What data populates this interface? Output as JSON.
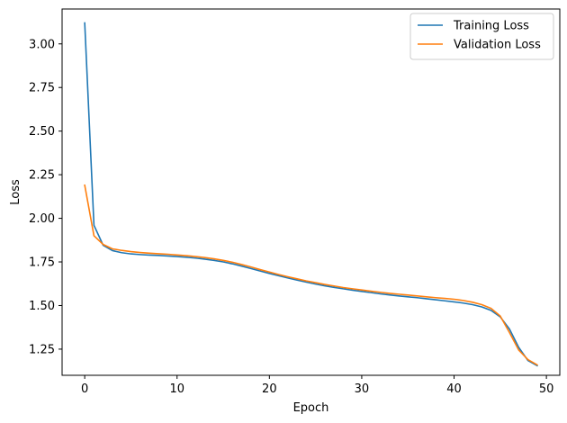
{
  "chart_data": {
    "type": "line",
    "xlabel": "Epoch",
    "ylabel": "Loss",
    "xlim": [
      -2.45,
      51.45
    ],
    "ylim": [
      1.1,
      3.2
    ],
    "xticks": [
      0,
      10,
      20,
      30,
      40,
      50
    ],
    "yticks": [
      1.25,
      1.5,
      1.75,
      2.0,
      2.25,
      2.5,
      2.75,
      3.0
    ],
    "ytick_labels": [
      "1.25",
      "1.50",
      "1.75",
      "2.00",
      "2.25",
      "2.50",
      "2.75",
      "3.00"
    ],
    "grid": false,
    "legend_position": "top-right",
    "x": [
      0,
      1,
      2,
      3,
      4,
      5,
      6,
      7,
      8,
      9,
      10,
      11,
      12,
      13,
      14,
      15,
      16,
      17,
      18,
      19,
      20,
      21,
      22,
      23,
      24,
      25,
      26,
      27,
      28,
      29,
      30,
      31,
      32,
      33,
      34,
      35,
      36,
      37,
      38,
      39,
      40,
      41,
      42,
      43,
      44,
      45,
      46,
      47,
      48,
      49
    ],
    "series": [
      {
        "name": "Training Loss",
        "color": "#1f77b4",
        "values": [
          3.12,
          1.96,
          1.845,
          1.815,
          1.803,
          1.796,
          1.792,
          1.789,
          1.787,
          1.784,
          1.781,
          1.777,
          1.772,
          1.766,
          1.759,
          1.75,
          1.739,
          1.726,
          1.712,
          1.698,
          1.684,
          1.671,
          1.658,
          1.646,
          1.634,
          1.623,
          1.613,
          1.604,
          1.596,
          1.588,
          1.581,
          1.574,
          1.567,
          1.561,
          1.555,
          1.55,
          1.545,
          1.539,
          1.533,
          1.527,
          1.521,
          1.514,
          1.505,
          1.492,
          1.472,
          1.435,
          1.365,
          1.26,
          1.185,
          1.155
        ]
      },
      {
        "name": "Validation Loss",
        "color": "#ff7f0e",
        "values": [
          2.19,
          1.9,
          1.85,
          1.825,
          1.816,
          1.809,
          1.804,
          1.8,
          1.797,
          1.794,
          1.79,
          1.786,
          1.781,
          1.775,
          1.768,
          1.759,
          1.748,
          1.735,
          1.721,
          1.706,
          1.692,
          1.678,
          1.665,
          1.653,
          1.641,
          1.631,
          1.621,
          1.612,
          1.603,
          1.596,
          1.589,
          1.582,
          1.576,
          1.57,
          1.565,
          1.56,
          1.555,
          1.55,
          1.545,
          1.541,
          1.536,
          1.529,
          1.519,
          1.505,
          1.484,
          1.44,
          1.345,
          1.245,
          1.19,
          1.16
        ]
      }
    ]
  }
}
